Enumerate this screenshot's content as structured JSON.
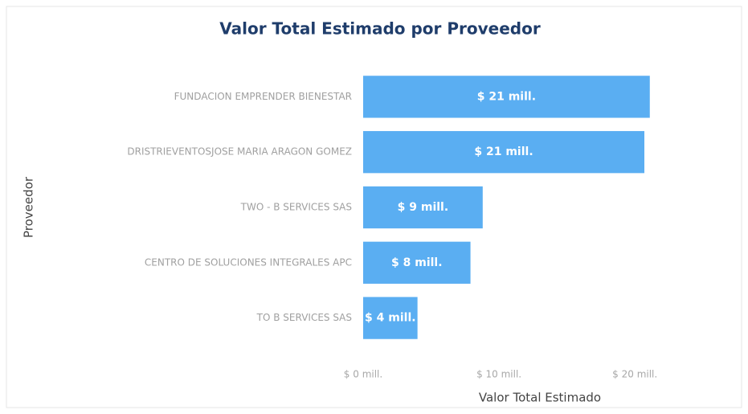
{
  "chart_data": {
    "type": "bar",
    "orientation": "horizontal",
    "title": "Valor Total Estimado por Proveedor",
    "x_label": "Valor Total Estimado",
    "y_label": "Proveedor",
    "categories": [
      "FUNDACION EMPRENDER BIENESTAR",
      "DRISTRIEVENTOSJOSE MARIA ARAGON GOMEZ",
      "TWO - B SERVICES SAS",
      "CENTRO DE SOLUCIONES INTEGRALES APC",
      "TO B SERVICES SAS"
    ],
    "values": [
      21.1,
      20.7,
      8.8,
      7.9,
      4.0
    ],
    "value_labels": [
      "$ 21 mill.",
      "$ 21 mill.",
      "$ 9 mill.",
      "$ 8 mill.",
      "$ 4 mill."
    ],
    "color": "#5aaef2",
    "xlim": [
      0,
      22
    ],
    "xticks": [
      {
        "value": 0,
        "label": "$ 0 mill."
      },
      {
        "value": 10,
        "label": "$ 10 mill."
      },
      {
        "value": 20,
        "label": "$ 20 mill."
      }
    ],
    "grid": false
  }
}
